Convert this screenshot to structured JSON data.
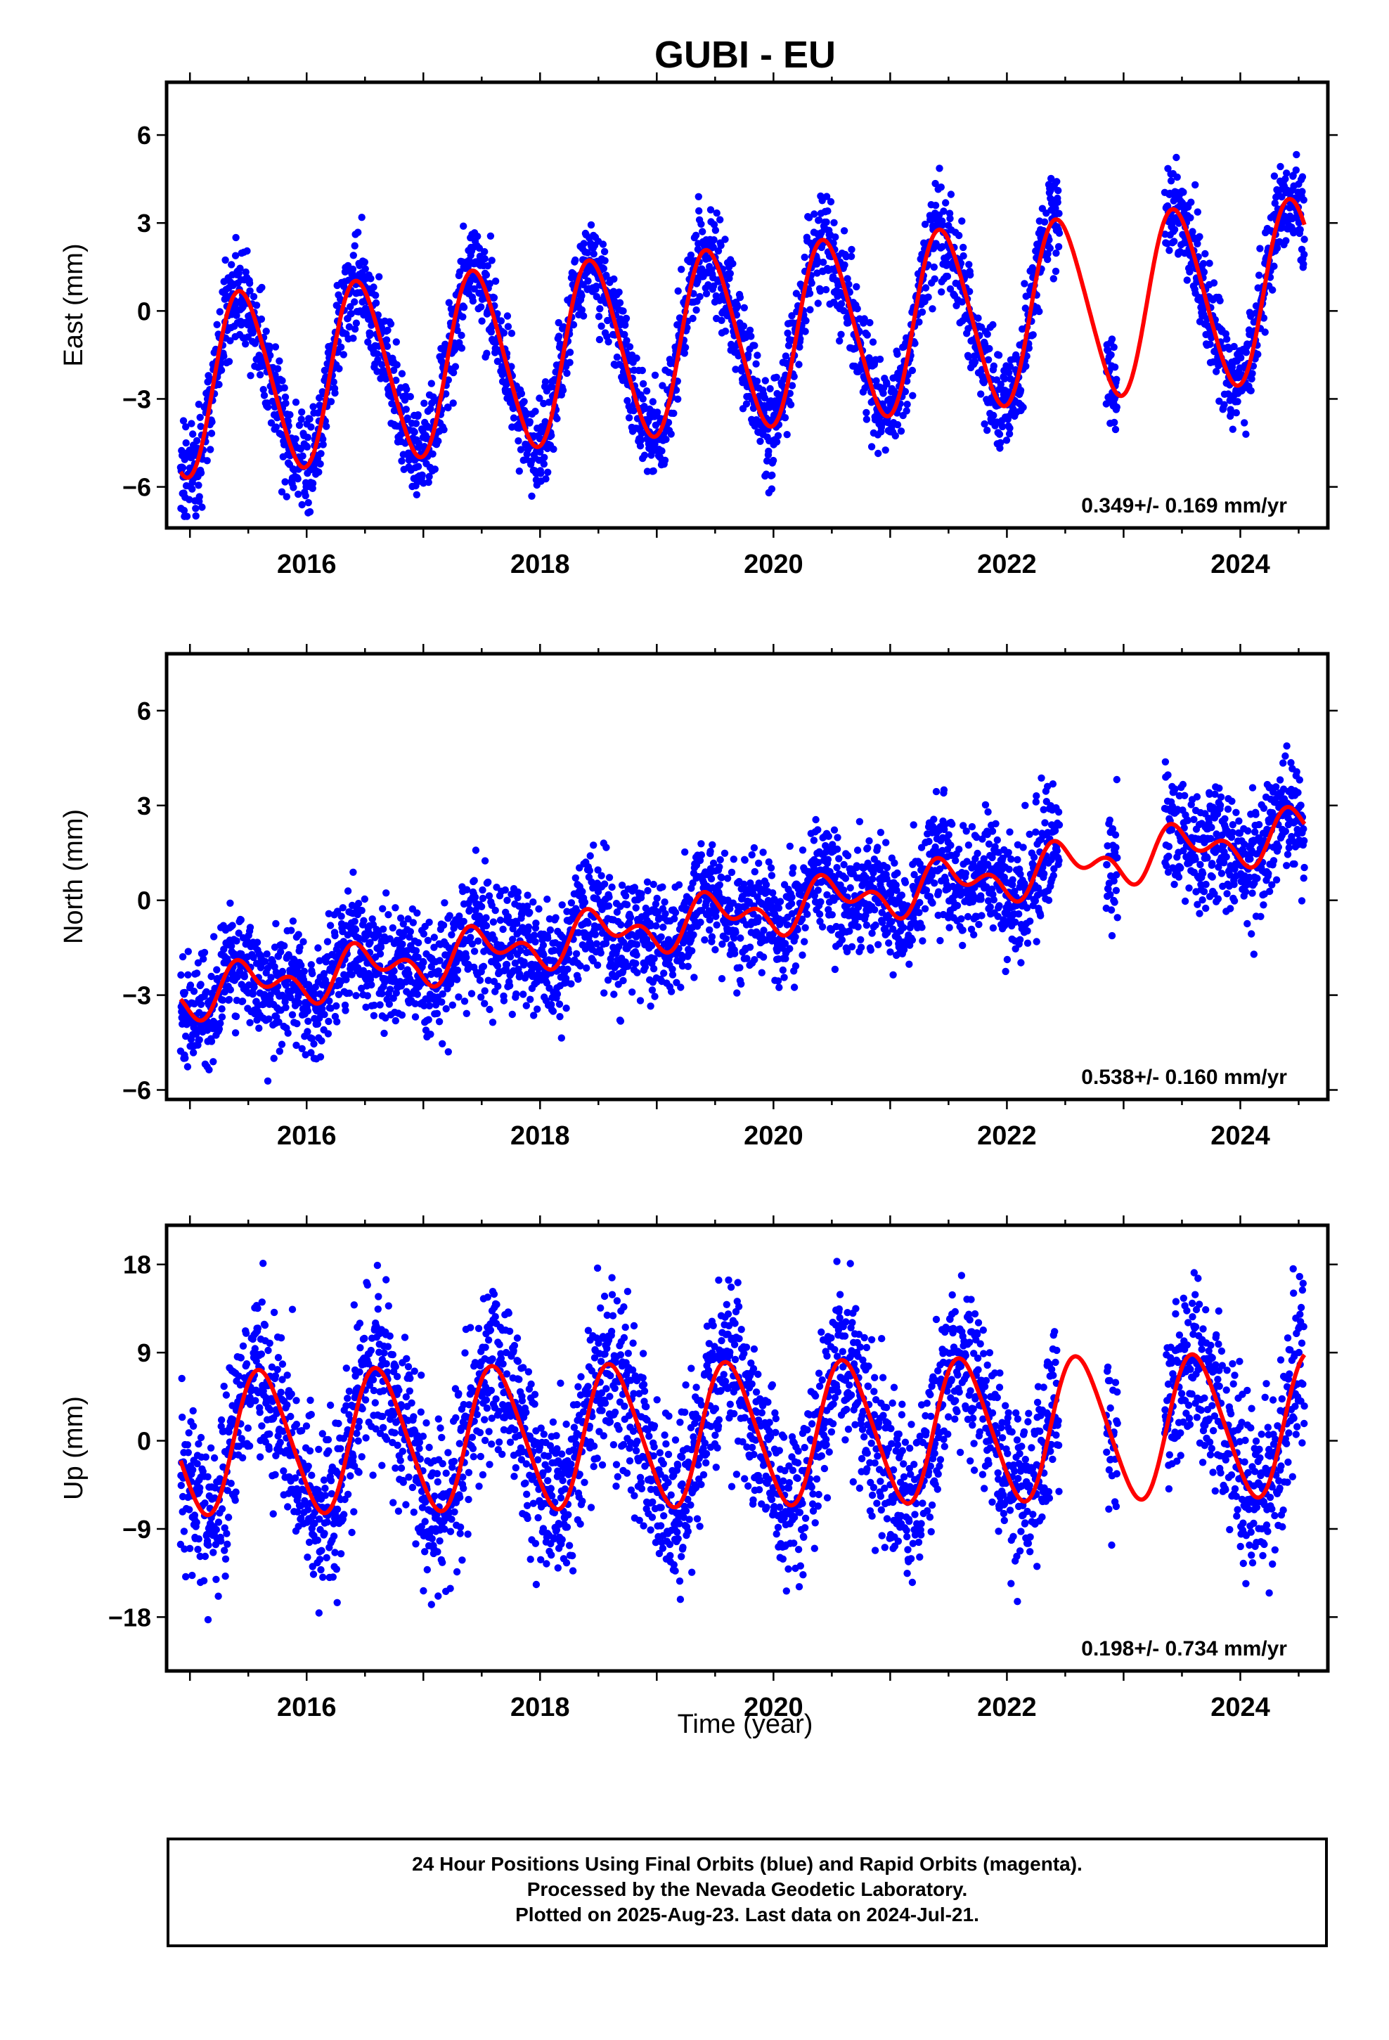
{
  "title": "GUBI - EU",
  "xlabel": "Time (year)",
  "footer": {
    "line1": "24 Hour Positions Using Final Orbits (blue) and Rapid Orbits (magenta).",
    "line2": "Processed by the Nevada Geodetic Laboratory.",
    "line3": "Plotted on 2025-Aug-23. Last data on 2024-Jul-21."
  },
  "colors": {
    "points": "#0000ff",
    "model": "#ff0000",
    "frame": "#000000"
  },
  "chart_data": [
    {
      "type": "scatter",
      "ylabel": "East (mm)",
      "xlim": [
        2014.8,
        2024.75
      ],
      "ylim": [
        -7.4,
        7.8
      ],
      "xticks": [
        2016,
        2018,
        2020,
        2022,
        2024
      ],
      "yticks": [
        6,
        3,
        0,
        -3,
        -6
      ],
      "yticklabels": [
        "6",
        "3",
        "0",
        "−3",
        "−6"
      ],
      "rate_label": "0.349+/- 0.169 mm/yr",
      "series": [
        {
          "role": "daily positions",
          "color": "#0000ff",
          "model": {
            "offset": -0.9,
            "rate": 0.349,
            "annual_amp": 3.05,
            "annual_peak": 0.45,
            "semi_amp": 0.3
          },
          "noise": 0.85,
          "gaps": [
            [
              2022.45,
              2022.85
            ],
            [
              2022.95,
              2023.35
            ]
          ]
        },
        {
          "role": "model fit",
          "color": "#ff0000"
        }
      ]
    },
    {
      "type": "scatter",
      "ylabel": "North (mm)",
      "xlim": [
        2014.8,
        2024.75
      ],
      "ylim": [
        -6.3,
        7.8
      ],
      "xticks": [
        2016,
        2018,
        2020,
        2022,
        2024
      ],
      "yticks": [
        6,
        3,
        0,
        -3,
        -6
      ],
      "yticklabels": [
        "6",
        "3",
        "0",
        "−3",
        "−6"
      ],
      "rate_label": "0.538+/- 0.160 mm/yr",
      "series": [
        {
          "role": "daily positions",
          "color": "#0000ff",
          "model": {
            "offset": -0.4,
            "rate": 0.538,
            "annual_amp": 0.55,
            "annual_peak": 0.5,
            "semi_amp": 0.45
          },
          "noise": 0.95,
          "gaps": [
            [
              2022.45,
              2022.85
            ],
            [
              2022.95,
              2023.35
            ]
          ]
        },
        {
          "role": "model fit",
          "color": "#ff0000"
        }
      ]
    },
    {
      "type": "scatter",
      "ylabel": "Up (mm)",
      "xlim": [
        2014.8,
        2024.75
      ],
      "ylim": [
        -23.5,
        22
      ],
      "xticks": [
        2016,
        2018,
        2020,
        2022,
        2024
      ],
      "yticks": [
        18,
        9,
        0,
        -9,
        -18
      ],
      "yticklabels": [
        "18",
        "9",
        "0",
        "−9",
        "−18"
      ],
      "rate_label": "0.198+/- 0.734 mm/yr",
      "series": [
        {
          "role": "daily positions",
          "color": "#0000ff",
          "model": {
            "offset": 0.7,
            "rate": 0.198,
            "annual_amp": 7.2,
            "annual_peak": 0.62,
            "semi_amp": 0.8
          },
          "noise": 4.4,
          "gaps": [
            [
              2022.45,
              2022.85
            ],
            [
              2022.95,
              2023.35
            ]
          ]
        },
        {
          "role": "model fit",
          "color": "#ff0000"
        }
      ]
    }
  ]
}
